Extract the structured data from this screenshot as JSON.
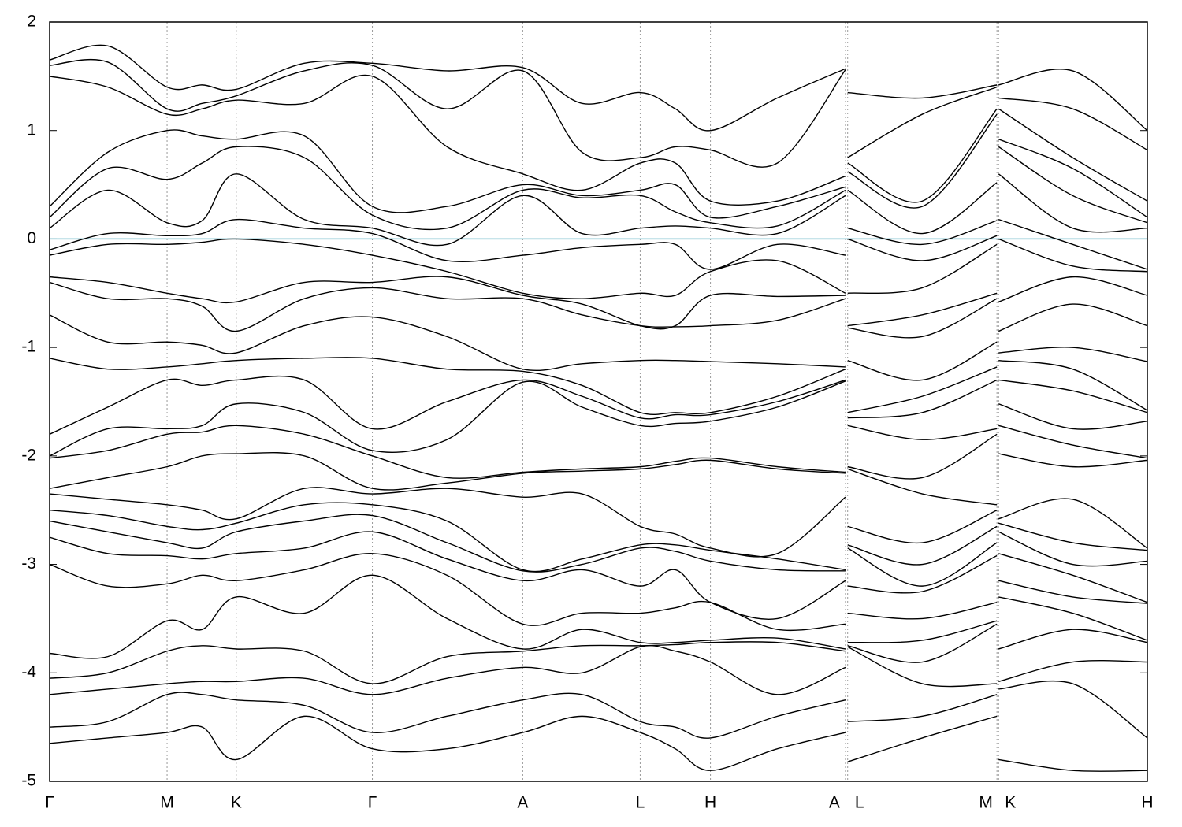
{
  "chart_data": {
    "type": "line",
    "color": "#000000",
    "reference_line": {
      "value": 0,
      "color": "#6ab7c9"
    },
    "grid": true,
    "xlim": [
      0,
      1
    ],
    "ylim": [
      -5,
      2
    ],
    "yticks": [
      -5,
      -4,
      -3,
      -2,
      -1,
      0,
      1,
      2
    ],
    "xticks": [
      {
        "value": 0,
        "label": "Γ"
      },
      {
        "value": 0.107,
        "label": "M"
      },
      {
        "value": 0.17,
        "label": "K"
      },
      {
        "value": 0.294,
        "label": "Γ"
      },
      {
        "value": 0.431,
        "label": "A"
      },
      {
        "value": 0.538,
        "label": "L"
      },
      {
        "value": 0.602,
        "label": "H"
      },
      {
        "value": 0.725,
        "label": "A"
      },
      {
        "value": 0.727,
        "label": "L"
      },
      {
        "value": 0.863,
        "label": "M"
      },
      {
        "value": 0.8645,
        "label": "K"
      },
      {
        "value": 1,
        "label": "H"
      }
    ],
    "x": [
      0,
      0.053,
      0.107,
      0.139,
      0.17,
      0.232,
      0.294,
      0.362,
      0.431,
      0.485,
      0.538,
      0.57,
      0.602,
      0.663,
      0.725,
      0.726,
      0.727,
      0.795,
      0.863,
      0.8638,
      0.8645,
      0.932,
      1.0
    ],
    "series": [
      {
        "values": [
          1.65,
          1.78,
          1.4,
          1.42,
          1.38,
          1.62,
          1.62,
          1.55,
          1.58,
          1.25,
          1.35,
          1.2,
          1.0,
          1.3,
          1.57,
          null,
          1.35,
          1.3,
          1.42,
          null,
          1.42,
          1.55,
          1.0
        ]
      },
      {
        "values": [
          1.6,
          1.63,
          1.2,
          1.25,
          1.32,
          1.55,
          1.6,
          1.2,
          1.55,
          0.8,
          0.75,
          0.85,
          0.82,
          0.7,
          1.56,
          null,
          0.75,
          1.15,
          1.4,
          null,
          1.3,
          1.2,
          0.82
        ]
      },
      {
        "values": [
          1.5,
          1.4,
          1.15,
          1.2,
          1.28,
          1.25,
          1.5,
          0.85,
          0.6,
          0.45,
          0.7,
          0.7,
          0.35,
          0.35,
          0.58,
          null,
          0.7,
          0.35,
          1.2,
          null,
          1.2,
          0.75,
          0.35
        ]
      },
      {
        "values": [
          0.3,
          0.8,
          1.0,
          0.95,
          0.92,
          0.95,
          0.3,
          0.3,
          0.5,
          0.4,
          0.45,
          0.5,
          0.2,
          0.3,
          0.48,
          null,
          0.62,
          0.3,
          1.15,
          null,
          0.92,
          0.65,
          0.2
        ]
      },
      {
        "values": [
          0.2,
          0.65,
          0.55,
          0.7,
          0.85,
          0.75,
          0.22,
          0.1,
          0.45,
          0.38,
          0.4,
          0.25,
          0.15,
          0.12,
          0.45,
          null,
          0.45,
          0.05,
          0.52,
          null,
          0.85,
          0.4,
          0.15
        ]
      },
      {
        "values": [
          0.1,
          0.45,
          0.15,
          0.17,
          0.6,
          0.18,
          0.1,
          -0.05,
          0.4,
          0.05,
          0.1,
          0.12,
          0.1,
          0.05,
          0.4,
          null,
          0.1,
          -0.05,
          0.17,
          null,
          0.6,
          0.1,
          0.1
        ]
      },
      {
        "values": [
          -0.1,
          0.05,
          0.03,
          0.05,
          0.18,
          0.1,
          0.05,
          -0.2,
          -0.15,
          -0.08,
          -0.05,
          -0.05,
          -0.28,
          -0.05,
          -0.15,
          null,
          0.0,
          -0.2,
          0.03,
          null,
          0.18,
          -0.05,
          -0.28
        ]
      },
      {
        "values": [
          -0.15,
          -0.05,
          -0.05,
          -0.03,
          0.0,
          -0.05,
          -0.15,
          -0.3,
          -0.5,
          -0.55,
          -0.5,
          -0.52,
          -0.3,
          -0.2,
          -0.5,
          null,
          -0.5,
          -0.45,
          -0.05,
          null,
          0.0,
          -0.25,
          -0.3
        ]
      },
      {
        "values": [
          -0.35,
          -0.4,
          -0.5,
          -0.55,
          -0.58,
          -0.4,
          -0.4,
          -0.35,
          -0.52,
          -0.6,
          -0.8,
          -0.8,
          -0.52,
          -0.53,
          -0.52,
          null,
          -0.8,
          -0.7,
          -0.5,
          null,
          -0.58,
          -0.35,
          -0.52
        ]
      },
      {
        "values": [
          -0.4,
          -0.55,
          -0.55,
          -0.62,
          -0.85,
          -0.55,
          -0.45,
          -0.55,
          -0.55,
          -0.7,
          -0.8,
          -0.81,
          -0.8,
          -0.75,
          -0.55,
          null,
          -0.82,
          -0.9,
          -0.55,
          null,
          -0.85,
          -0.6,
          -0.8
        ]
      },
      {
        "values": [
          -0.7,
          -0.95,
          -0.95,
          -0.98,
          -1.05,
          -0.8,
          -0.72,
          -0.9,
          -1.2,
          -1.15,
          -1.12,
          -1.12,
          -1.13,
          -1.15,
          -1.18,
          null,
          -1.12,
          -1.3,
          -0.95,
          null,
          -1.05,
          -1.0,
          -1.13
        ]
      },
      {
        "values": [
          -1.1,
          -1.2,
          -1.18,
          -1.15,
          -1.12,
          -1.1,
          -1.1,
          -1.2,
          -1.22,
          -1.35,
          -1.6,
          -1.6,
          -1.6,
          -1.45,
          -1.2,
          null,
          -1.6,
          -1.45,
          -1.18,
          null,
          -1.12,
          -1.2,
          -1.58
        ]
      },
      {
        "values": [
          -1.8,
          -1.55,
          -1.3,
          -1.35,
          -1.3,
          -1.3,
          -1.75,
          -1.5,
          -1.3,
          -1.45,
          -1.65,
          -1.62,
          -1.62,
          -1.5,
          -1.3,
          null,
          -1.65,
          -1.6,
          -1.3,
          null,
          -1.3,
          -1.4,
          -1.6
        ]
      },
      {
        "values": [
          -2.0,
          -1.75,
          -1.75,
          -1.72,
          -1.52,
          -1.6,
          -1.95,
          -1.85,
          -1.32,
          -1.55,
          -1.72,
          -1.7,
          -1.68,
          -1.55,
          -1.31,
          null,
          -1.72,
          -1.85,
          -1.75,
          null,
          -1.52,
          -1.75,
          -1.68
        ]
      },
      {
        "values": [
          -2.02,
          -1.95,
          -1.8,
          -1.78,
          -1.72,
          -1.8,
          -2.0,
          -2.2,
          -2.15,
          -2.12,
          -2.1,
          -2.05,
          -2.02,
          -2.1,
          -2.15,
          null,
          -2.1,
          -2.2,
          -1.8,
          null,
          -1.72,
          -1.9,
          -2.02
        ]
      },
      {
        "values": [
          -2.3,
          -2.2,
          -2.1,
          -2.0,
          -1.98,
          -2.0,
          -2.3,
          -2.25,
          -2.16,
          -2.14,
          -2.12,
          -2.08,
          -2.04,
          -2.12,
          -2.16,
          null,
          -2.12,
          -2.35,
          -2.45,
          null,
          -1.98,
          -2.1,
          -2.04
        ]
      },
      {
        "values": [
          -2.35,
          -2.4,
          -2.45,
          -2.5,
          -2.58,
          -2.3,
          -2.35,
          -2.3,
          -2.38,
          -2.35,
          -2.65,
          -2.72,
          -2.85,
          -2.9,
          -2.38,
          null,
          -2.65,
          -2.8,
          -2.5,
          null,
          -2.58,
          -2.4,
          -2.85
        ]
      },
      {
        "values": [
          -2.5,
          -2.55,
          -2.65,
          -2.68,
          -2.62,
          -2.45,
          -2.45,
          -2.6,
          -3.05,
          -2.95,
          -2.82,
          -2.82,
          -2.87,
          -2.95,
          -3.05,
          null,
          -2.82,
          -3.0,
          -2.65,
          null,
          -2.62,
          -2.8,
          -2.87
        ]
      },
      {
        "values": [
          -2.6,
          -2.7,
          -2.8,
          -2.85,
          -2.7,
          -2.6,
          -2.55,
          -2.8,
          -3.06,
          -3.0,
          -2.85,
          -2.88,
          -2.97,
          -3.05,
          -3.06,
          null,
          -2.85,
          -3.2,
          -2.8,
          null,
          -2.7,
          -3.0,
          -2.97
        ]
      },
      {
        "values": [
          -2.75,
          -2.9,
          -2.92,
          -2.95,
          -2.9,
          -2.85,
          -2.7,
          -2.95,
          -3.15,
          -3.05,
          -3.2,
          -3.05,
          -3.35,
          -3.5,
          -3.15,
          null,
          -3.2,
          -3.25,
          -2.92,
          null,
          -2.9,
          -3.1,
          -3.35
        ]
      },
      {
        "values": [
          -3.0,
          -3.2,
          -3.18,
          -3.1,
          -3.15,
          -3.05,
          -2.9,
          -3.1,
          -3.55,
          -3.45,
          -3.45,
          -3.4,
          -3.35,
          -3.6,
          -3.55,
          null,
          -3.45,
          -3.5,
          -3.35,
          null,
          -3.15,
          -3.3,
          -3.36
        ]
      },
      {
        "values": [
          -3.82,
          -3.85,
          -3.52,
          -3.6,
          -3.3,
          -3.45,
          -3.1,
          -3.5,
          -3.78,
          -3.6,
          -3.72,
          -3.72,
          -3.7,
          -3.68,
          -3.78,
          null,
          -3.72,
          -3.7,
          -3.52,
          null,
          -3.3,
          -3.45,
          -3.7
        ]
      },
      {
        "values": [
          -4.05,
          -4.0,
          -3.8,
          -3.75,
          -3.78,
          -3.8,
          -4.1,
          -3.85,
          -3.8,
          -3.75,
          -3.75,
          -3.74,
          -3.72,
          -3.72,
          -3.8,
          null,
          -3.75,
          -3.9,
          -3.55,
          null,
          -3.78,
          -3.6,
          -3.72
        ]
      },
      {
        "values": [
          -4.2,
          -4.15,
          -4.1,
          -4.08,
          -4.08,
          -4.05,
          -4.2,
          -4.05,
          -3.95,
          -4.0,
          -3.76,
          -3.8,
          -3.9,
          -4.2,
          -3.95,
          null,
          -3.76,
          -4.1,
          -4.1,
          null,
          -4.08,
          -3.9,
          -3.9
        ]
      },
      {
        "values": [
          -4.5,
          -4.45,
          -4.2,
          -4.2,
          -4.25,
          -4.3,
          -4.55,
          -4.4,
          -4.25,
          -4.2,
          -4.45,
          -4.5,
          -4.6,
          -4.4,
          -4.25,
          null,
          -4.45,
          -4.4,
          -4.2,
          null,
          -4.15,
          -4.1,
          -4.6
        ]
      },
      {
        "values": [
          -4.65,
          -4.6,
          -4.55,
          -4.5,
          -4.8,
          -4.4,
          -4.7,
          -4.7,
          -4.55,
          -4.4,
          -4.55,
          -4.7,
          -4.9,
          -4.7,
          -4.55,
          null,
          -4.82,
          -4.6,
          -4.4,
          null,
          -4.8,
          -4.9,
          -4.9
        ]
      }
    ]
  }
}
